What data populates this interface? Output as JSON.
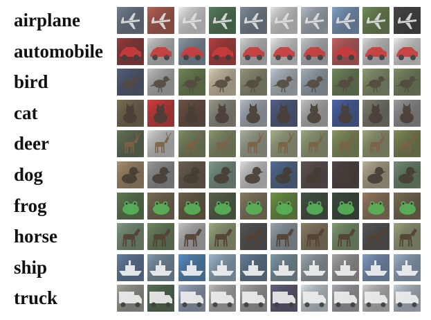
{
  "figure": {
    "classes": [
      {
        "label": "airplane",
        "icon": "airplane-icon",
        "bg": [
          "#5f6f82",
          "#b24a3a",
          "#eeeeee",
          "#3d6d46",
          "#6e7e8e",
          "#e4e4e4",
          "#a9b4c0",
          "#6f95c2",
          "#5f7e3e",
          "#2a2a2a"
        ],
        "fg": "#dcdcdc"
      },
      {
        "label": "automobile",
        "icon": "car-icon",
        "bg": [
          "#8a1e1e",
          "#c7c7c7",
          "#7a8a9a",
          "#b02222",
          "#cfcfcf",
          "#e6e6e6",
          "#bfc3c9",
          "#c44a4a",
          "#d7d7d7",
          "#eaeaea"
        ],
        "fg": "#c41d1d"
      },
      {
        "label": "bird",
        "icon": "bird-icon",
        "bg": [
          "#3b4a6a",
          "#b9b9b9",
          "#5f7a3e",
          "#d8caa8",
          "#8a8a6a",
          "#b7c4cf",
          "#9aa8b4",
          "#5e7a45",
          "#7f8f5f",
          "#6d7f4f"
        ],
        "fg": "#3a2f22"
      },
      {
        "label": "cat",
        "icon": "cat-icon",
        "bg": [
          "#6a5a3a",
          "#d61f1f",
          "#5a3a2a",
          "#8a8a7a",
          "#aab4bf",
          "#3a4a7a",
          "#bcbcbc",
          "#2f4f9f",
          "#6f6f5f",
          "#8f8f8f"
        ],
        "fg": "#2e2218"
      },
      {
        "label": "deer",
        "icon": "deer-icon",
        "bg": [
          "#4f5f3f",
          "#d6d6d6",
          "#6f7f4f",
          "#7a8a5a",
          "#a0a890",
          "#9aa77a",
          "#8f9f6f",
          "#7a8a4a",
          "#8f9a6a",
          "#6f7f3f"
        ],
        "fg": "#6a4a2a"
      },
      {
        "label": "dog",
        "icon": "dog-icon",
        "bg": [
          "#a0825a",
          "#8f8f8f",
          "#5a4a3a",
          "#6f8f7f",
          "#dcdcdc",
          "#3a5a8a",
          "#4a3a3a",
          "#3a2a2a",
          "#b4a888",
          "#5f7f5f"
        ],
        "fg": "#2a2016"
      },
      {
        "label": "frog",
        "icon": "frog-icon",
        "bg": [
          "#4a6a3a",
          "#6a5a3a",
          "#5a4a2a",
          "#3f4f2f",
          "#7a6a4a",
          "#5a8a2a",
          "#2a3a2a",
          "#1f2f1f",
          "#8a6a4a",
          "#6a5a3a"
        ],
        "fg": "#3fa83f"
      },
      {
        "label": "horse",
        "icon": "horse-icon",
        "bg": [
          "#6f8f6f",
          "#5a7a4a",
          "#bcbcbc",
          "#8f9f6f",
          "#3f3f3f",
          "#8a9aa4",
          "#7f6f4f",
          "#6f8f5f",
          "#3f3f3f",
          "#8f9a6a"
        ],
        "fg": "#3a2416"
      },
      {
        "label": "ship",
        "icon": "ship-icon",
        "bg": [
          "#4f6f9a",
          "#6f8fa8",
          "#3f7fbf",
          "#8fb0c8",
          "#4f6f8f",
          "#6f8f9f",
          "#8f9fa8",
          "#9a9a9a",
          "#6f8fbf",
          "#8fa8c8"
        ],
        "fg": "#f2f2f2"
      },
      {
        "label": "truck",
        "icon": "truck-icon",
        "bg": [
          "#9a9a8f",
          "#3f5f3f",
          "#8f9fbf",
          "#b4b4b4",
          "#9f9f9f",
          "#4a4a6a",
          "#cfdce6",
          "#9f9fa8",
          "#c8c8c8",
          "#bcc8d4"
        ],
        "fg": "#eeeeee"
      }
    ]
  }
}
